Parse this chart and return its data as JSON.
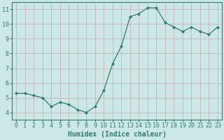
{
  "x": [
    0,
    1,
    2,
    3,
    4,
    5,
    6,
    7,
    8,
    9,
    10,
    11,
    12,
    13,
    14,
    15,
    16,
    17,
    18,
    19,
    20,
    21,
    22,
    23
  ],
  "y": [
    5.3,
    5.3,
    5.15,
    5.0,
    4.4,
    4.7,
    4.55,
    4.2,
    4.0,
    4.4,
    5.5,
    7.3,
    8.5,
    10.5,
    10.7,
    11.1,
    11.1,
    10.1,
    9.8,
    9.5,
    9.8,
    9.5,
    9.3,
    9.8
  ],
  "line_color": "#2d7d6e",
  "marker": "D",
  "marker_size": 2.0,
  "bg_color": "#cce8e6",
  "grid_color": "#c8a8b0",
  "xlabel": "Humidex (Indice chaleur)",
  "xlim": [
    -0.5,
    23.5
  ],
  "ylim": [
    3.5,
    11.5
  ],
  "yticks": [
    4,
    5,
    6,
    7,
    8,
    9,
    10,
    11
  ],
  "xticks": [
    0,
    1,
    2,
    3,
    4,
    5,
    6,
    7,
    8,
    9,
    10,
    11,
    12,
    13,
    14,
    15,
    16,
    17,
    18,
    19,
    20,
    21,
    22,
    23
  ],
  "tick_color": "#2d7d6e",
  "label_color": "#2d7d6e",
  "xlabel_fontsize": 7,
  "tick_fontsize": 6,
  "linewidth": 0.9
}
